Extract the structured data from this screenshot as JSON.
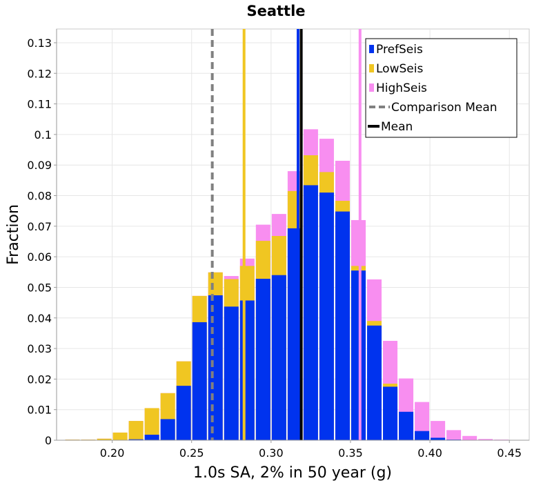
{
  "chart_data": {
    "type": "bar",
    "title": "Seattle",
    "xlabel": "1.0s SA, 2% in 50 year (g)",
    "ylabel": "Fraction",
    "xlim": [
      0.165,
      0.4625
    ],
    "ylim": [
      0,
      0.1345
    ],
    "grid": true,
    "bin_width": 0.01,
    "x_ticks": [
      {
        "value": 0.2,
        "label": "0.20"
      },
      {
        "value": 0.25,
        "label": "0.25"
      },
      {
        "value": 0.3,
        "label": "0.30"
      },
      {
        "value": 0.35,
        "label": "0.35"
      },
      {
        "value": 0.4,
        "label": "0.40"
      },
      {
        "value": 0.45,
        "label": "0.45"
      }
    ],
    "y_ticks": [
      {
        "value": 0,
        "label": "0"
      },
      {
        "value": 0.01,
        "label": "0.01"
      },
      {
        "value": 0.02,
        "label": "0.02"
      },
      {
        "value": 0.03,
        "label": "0.03"
      },
      {
        "value": 0.04,
        "label": "0.04"
      },
      {
        "value": 0.05,
        "label": "0.05"
      },
      {
        "value": 0.06,
        "label": "0.06"
      },
      {
        "value": 0.07,
        "label": "0.07"
      },
      {
        "value": 0.08,
        "label": "0.08"
      },
      {
        "value": 0.09,
        "label": "0.09"
      },
      {
        "value": 0.1,
        "label": "0.1"
      },
      {
        "value": 0.11,
        "label": "0.11"
      },
      {
        "value": 0.12,
        "label": "0.12"
      },
      {
        "value": 0.13,
        "label": "0.13"
      }
    ],
    "bin_centers": [
      0.175,
      0.185,
      0.195,
      0.205,
      0.215,
      0.225,
      0.235,
      0.245,
      0.255,
      0.265,
      0.275,
      0.285,
      0.295,
      0.305,
      0.315,
      0.325,
      0.335,
      0.345,
      0.355,
      0.365,
      0.375,
      0.385,
      0.395,
      0.405,
      0.415,
      0.425,
      0.435,
      0.445,
      0.455
    ],
    "series": [
      {
        "name": "HighSeis",
        "color": "#f88ef0",
        "values": [
          0.0002,
          0.0002,
          0.0005,
          0.0025,
          0.0063,
          0.0105,
          0.0154,
          0.0258,
          0.0472,
          0.0549,
          0.0537,
          0.0594,
          0.0705,
          0.074,
          0.088,
          0.1017,
          0.0986,
          0.0914,
          0.072,
          0.0526,
          0.0325,
          0.0202,
          0.0125,
          0.0063,
          0.0033,
          0.0014,
          0.0004,
          0.0002,
          0.0001
        ]
      },
      {
        "name": "LowSeis",
        "color": "#f0c622",
        "values": [
          0.0002,
          0.0002,
          0.0005,
          0.0025,
          0.0063,
          0.0105,
          0.0154,
          0.0258,
          0.0472,
          0.0549,
          0.0527,
          0.057,
          0.0652,
          0.0668,
          0.0815,
          0.0932,
          0.0877,
          0.0783,
          0.057,
          0.039,
          0.0185,
          0.0012,
          0.0002,
          0.0002,
          0.0001,
          0.0001,
          0.0001,
          0.0001,
          0.0001
        ]
      },
      {
        "name": "PrefSeis",
        "color": "#0033ee",
        "values": [
          0,
          0,
          0,
          0,
          0.0003,
          0.0018,
          0.0069,
          0.0178,
          0.0386,
          0.0474,
          0.0437,
          0.0457,
          0.0528,
          0.054,
          0.0693,
          0.0834,
          0.081,
          0.0748,
          0.0555,
          0.0375,
          0.0175,
          0.0093,
          0.003,
          0.0008,
          0.0002,
          0,
          0,
          0,
          0
        ]
      }
    ],
    "vertical_lines": [
      {
        "name": "Comparison Mean",
        "x": 0.263,
        "color": "#808080",
        "style": "dashed"
      },
      {
        "name": "LowSeis mean",
        "x": 0.283,
        "color": "#f0c622",
        "style": "solid"
      },
      {
        "name": "PrefSeis mean",
        "x": 0.317,
        "color": "#0033ee",
        "style": "solid"
      },
      {
        "name": "Mean",
        "x": 0.319,
        "color": "#000000",
        "style": "solid"
      },
      {
        "name": "HighSeis mean",
        "x": 0.356,
        "color": "#f88ef0",
        "style": "solid"
      }
    ],
    "legend": {
      "placement": "top-right",
      "entries": [
        {
          "label": "PrefSeis",
          "color": "#0033ee",
          "kind": "box"
        },
        {
          "label": "LowSeis",
          "color": "#f0c622",
          "kind": "box"
        },
        {
          "label": "HighSeis",
          "color": "#f88ef0",
          "kind": "box"
        },
        {
          "label": "Comparison Mean",
          "color": "#808080",
          "kind": "dashed"
        },
        {
          "label": "Mean",
          "color": "#000000",
          "kind": "line"
        }
      ]
    }
  }
}
